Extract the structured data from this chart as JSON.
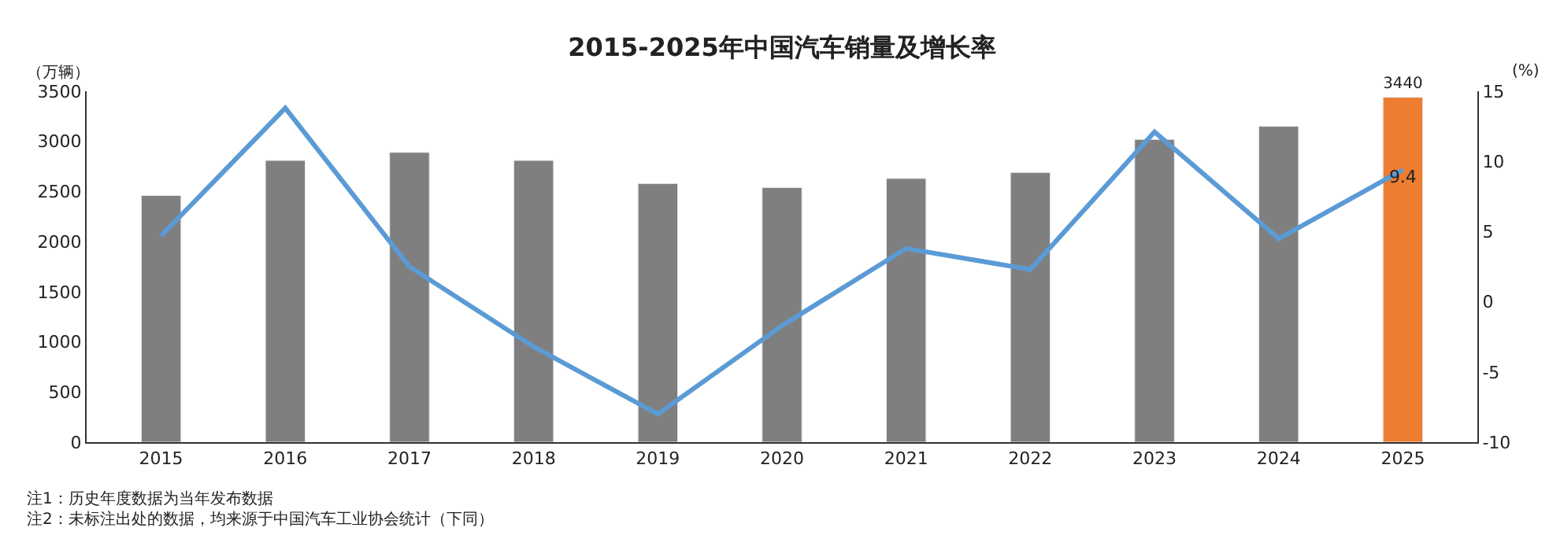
{
  "chart_data": {
    "type": "bar",
    "title": "2015-2025年中国汽车销量及增长率",
    "ylabel": "（万辆）",
    "y2label": "(%)",
    "categories": [
      "2015",
      "2016",
      "2017",
      "2018",
      "2019",
      "2020",
      "2021",
      "2022",
      "2023",
      "2024",
      "2025"
    ],
    "series": [
      {
        "colors": [
          "#7f7f7f",
          "#7f7f7f",
          "#7f7f7f",
          "#7f7f7f",
          "#7f7f7f",
          "#7f7f7f",
          "#7f7f7f",
          "#7f7f7f",
          "#7f7f7f",
          "#7f7f7f",
          "#ed7d31"
        ],
        "values": [
          2460,
          2810,
          2890,
          2810,
          2580,
          2540,
          2630,
          2690,
          3020,
          3150,
          3440
        ],
        "value_labels": [
          null,
          null,
          null,
          null,
          null,
          null,
          null,
          null,
          null,
          null,
          "3440"
        ]
      },
      {
        "type": "line",
        "axis": "y2",
        "color": "#5b9bd5",
        "values": [
          4.7,
          13.8,
          2.5,
          -3.2,
          -8.0,
          -1.7,
          3.8,
          2.3,
          12.1,
          4.5,
          9.4
        ],
        "value_labels": [
          null,
          null,
          null,
          null,
          null,
          null,
          null,
          null,
          null,
          null,
          "9.4"
        ]
      }
    ],
    "ylim": [
      0,
      3500
    ],
    "yticks": [
      0,
      500,
      1000,
      1500,
      2000,
      2500,
      3000,
      3500
    ],
    "y2lim": [
      -10,
      15
    ],
    "y2ticks": [
      -10,
      -5,
      0,
      5,
      10,
      15
    ],
    "legend": false,
    "marker": "none",
    "annotations": [
      "注1：历史年度数据为当年发布数据",
      "注2：未标注出处的数据，均来源于中国汽车工业协会统计（下同）"
    ]
  }
}
